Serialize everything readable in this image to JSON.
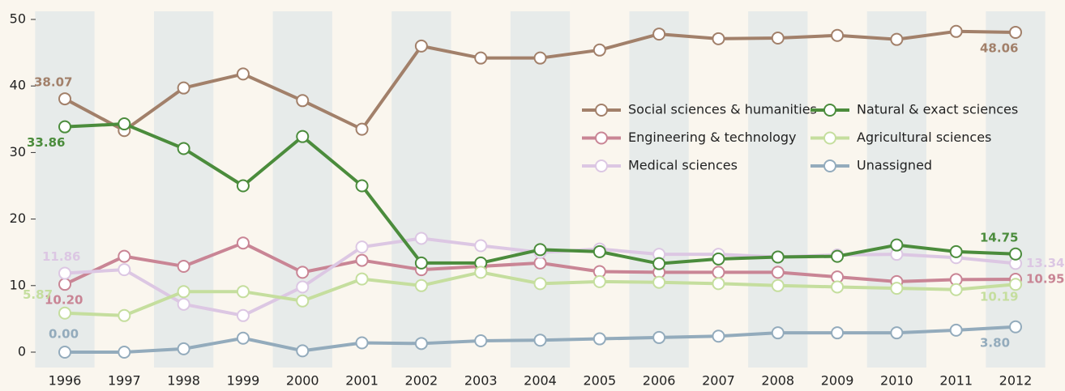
{
  "chart_data": {
    "type": "line",
    "categories": [
      "1996",
      "1997",
      "1998",
      "1999",
      "2000",
      "2001",
      "2002",
      "2003",
      "2004",
      "2005",
      "2006",
      "2007",
      "2008",
      "2009",
      "2010",
      "2011",
      "2012"
    ],
    "ylim": [
      0,
      50
    ],
    "yticks": [
      0,
      10,
      20,
      30,
      40,
      50
    ],
    "legend": "upper right",
    "series": [
      {
        "name": "Social sciences & humanities",
        "color": "#a2806a",
        "values": [
          38.07,
          33.3,
          39.7,
          41.8,
          37.8,
          33.5,
          46.0,
          44.2,
          44.2,
          45.4,
          47.8,
          47.1,
          47.2,
          47.6,
          47.0,
          48.2,
          48.06
        ],
        "value_labels": [
          "38.07",
          null,
          null,
          null,
          null,
          null,
          null,
          null,
          null,
          null,
          null,
          null,
          null,
          null,
          null,
          null,
          "48.06"
        ]
      },
      {
        "name": "Engineering & technology",
        "color": "#c98595",
        "values": [
          10.2,
          14.4,
          12.9,
          16.4,
          12.0,
          13.8,
          12.4,
          12.9,
          13.4,
          12.1,
          12.0,
          12.0,
          12.0,
          11.3,
          10.6,
          10.9,
          10.95
        ],
        "value_labels": [
          "10.20",
          null,
          null,
          null,
          null,
          null,
          null,
          null,
          null,
          null,
          null,
          null,
          null,
          null,
          null,
          null,
          "10.95"
        ]
      },
      {
        "name": "Medical sciences",
        "color": "#dcc7e3",
        "values": [
          11.86,
          12.4,
          7.2,
          5.5,
          9.8,
          15.8,
          17.1,
          16.0,
          15.0,
          15.5,
          14.7,
          14.7,
          14.3,
          14.6,
          14.7,
          14.2,
          13.34
        ],
        "value_labels": [
          "11.86",
          null,
          null,
          null,
          null,
          null,
          null,
          null,
          null,
          null,
          null,
          null,
          null,
          null,
          null,
          null,
          "13.34"
        ]
      },
      {
        "name": "Natural & exact sciences",
        "color": "#4b8c3c",
        "values": [
          33.86,
          34.3,
          30.6,
          25.0,
          32.4,
          25.0,
          13.4,
          13.4,
          15.4,
          15.1,
          13.3,
          14.0,
          14.3,
          14.4,
          16.1,
          15.1,
          14.75
        ],
        "value_labels": [
          "33.86",
          null,
          null,
          null,
          null,
          null,
          null,
          null,
          null,
          null,
          null,
          null,
          null,
          null,
          null,
          null,
          "14.75"
        ]
      },
      {
        "name": "Agricultural sciences",
        "color": "#c5de9e",
        "values": [
          5.87,
          5.5,
          9.1,
          9.1,
          7.7,
          11.0,
          10.0,
          12.0,
          10.3,
          10.6,
          10.5,
          10.3,
          10.0,
          9.8,
          9.6,
          9.4,
          10.19
        ],
        "value_labels": [
          "5.87",
          null,
          null,
          null,
          null,
          null,
          null,
          null,
          null,
          null,
          null,
          null,
          null,
          null,
          null,
          null,
          "10.19"
        ]
      },
      {
        "name": "Unassigned",
        "color": "#93abbc",
        "values": [
          0.0,
          0.0,
          0.5,
          2.1,
          0.2,
          1.4,
          1.3,
          1.7,
          1.8,
          2.0,
          2.2,
          2.4,
          2.9,
          2.9,
          2.9,
          3.3,
          3.8
        ],
        "value_labels": [
          "0.00",
          null,
          null,
          null,
          null,
          null,
          null,
          null,
          null,
          null,
          null,
          null,
          null,
          null,
          null,
          null,
          "3.80"
        ]
      }
    ]
  }
}
